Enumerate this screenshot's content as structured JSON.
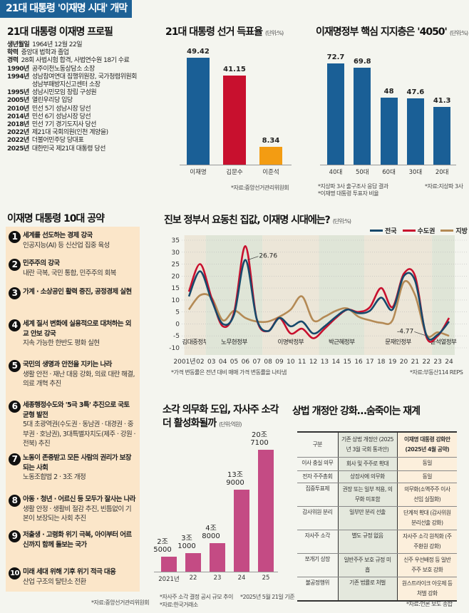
{
  "banner": "21대 대통령 '이재명 시대' 개막",
  "profile": {
    "title": "21대 대통령 이재명 프로필",
    "rows": [
      {
        "k": "생년월일",
        "v": "1964년 12월 22일"
      },
      {
        "k": "학력",
        "v": "중앙대 법학과 졸업"
      },
      {
        "k": "경력",
        "v": "28회 사법시험 합격, 사법연수원 18기 수료"
      },
      {
        "k": "1990년",
        "v": "공주이천노동상담소 소장"
      },
      {
        "k": "1994년",
        "v": "성남참여연대 집행위원장, 국가청렴위원회 성남부패방지신고센터 소장"
      },
      {
        "k": "1995년",
        "v": "성남시민모임 창립 구성원"
      },
      {
        "k": "2005년",
        "v": "열린우리당 입당"
      },
      {
        "k": "2010년",
        "v": "민선 5기 성남시장 당선"
      },
      {
        "k": "2014년",
        "v": "민선 6기 성남시장 당선"
      },
      {
        "k": "2018년",
        "v": "민선 7기 경기도지사 당선"
      },
      {
        "k": "2022년",
        "v": "제21대 국회의원(인천 계양을)"
      },
      {
        "k": "2022년",
        "v": "더불어민주당 당대표"
      },
      {
        "k": "2025년",
        "v": "대한민국 제21대 대통령 당선"
      }
    ]
  },
  "pledges": {
    "title": "이재명 대통령 10대 공약",
    "source": "*자료:중앙선거관리위원회",
    "items": [
      {
        "n": "1",
        "t": "세계를 선도하는 경제 강국",
        "s": "인공지능(AI) 등 신산업 집중 육성"
      },
      {
        "n": "2",
        "t": "민주주의 강국",
        "s": "내란 극복, 국민 통합, 민주주의 회복"
      },
      {
        "n": "3",
        "t": "가계 · 소상공인 활력 증진, 공정경제 실현",
        "s": ""
      },
      {
        "n": "4",
        "t": "세계 질서 변화에 실용적으로 대처하는 외교 안보 강국",
        "s": "지속 가능한 한반도 평화 실현"
      },
      {
        "n": "5",
        "t": "국민의 생명과 안전을 지키는 나라",
        "s": "생활 안전 · 재난 대응 강화, 의료 대란 해결, 의료 개혁 추진"
      },
      {
        "n": "6",
        "t": "세종행정수도와 '5극 3특' 추진으로 국토 균형 발전",
        "s": "5대 초광역권(수도권 · 동남권 · 대경권 · 중부권 · 호남권), 3대특별자치도(제주 · 강원 · 전북) 추진"
      },
      {
        "n": "7",
        "t": "노동이 존중받고 모든 사람의 권리가 보장되는 사회",
        "s": "노동조합법 2 · 3조 개정"
      },
      {
        "n": "8",
        "t": "아동 · 청년 · 어르신 등 모두가 잘사는 나라",
        "s": "생활 안정 · 생활비 절감 추진, 빈틈없이 기본이 보장되는 사회 추진"
      },
      {
        "n": "9",
        "t": "저출생 · 고령화 위기 극복, 아이부터 어르신까지 함께 돌보는 국가",
        "s": ""
      },
      {
        "n": "10",
        "t": "미래 세대 위해 기후 위기 적극 대응",
        "s": "산업 구조의 탈탄소 전환"
      }
    ]
  },
  "chart_data": [
    {
      "id": "vote",
      "type": "bar",
      "title": "21대 대통령 선거 득표율",
      "unit": "(단위:%)",
      "categories": [
        "이재명",
        "김문수",
        "이준석"
      ],
      "values": [
        49.42,
        41.15,
        8.34
      ],
      "value_labels": [
        "49.42",
        "41.15",
        "8.34"
      ],
      "colors": [
        "#1a5f96",
        "#c8102e",
        "#f39c12"
      ],
      "source": "*자료:중앙선거관리위원회"
    },
    {
      "id": "age",
      "type": "bar",
      "title": "이재명정부 핵심 지지층은 '4050'",
      "unit": "(단위:%)",
      "categories": [
        "40대",
        "50대",
        "60대",
        "30대",
        "20대"
      ],
      "values": [
        72.7,
        69.8,
        48,
        47.6,
        41.3
      ],
      "value_labels": [
        "72.7",
        "69.8",
        "48",
        "47.6",
        "41.3"
      ],
      "colors": [
        "#1a5f96"
      ],
      "notes": [
        "*지상파 3사 출구조사 응답 결과",
        "*이재명 대통령 투표자 비율"
      ],
      "source": "*자료:지상파 3사"
    },
    {
      "id": "housing",
      "type": "line",
      "title": "진보 정부서 요동친 집값, 이재명 시대에는?",
      "unit": "(단위:%)",
      "x": [
        2001,
        2002,
        2003,
        2004,
        2005,
        2006,
        2007,
        2008,
        2009,
        2010,
        2011,
        2012,
        2013,
        2014,
        2015,
        2016,
        2017,
        2018,
        2019,
        2020,
        2021,
        2022,
        2023,
        2024
      ],
      "x_tick_labels": [
        "2001년",
        "02",
        "03",
        "04",
        "05",
        "06",
        "07",
        "08",
        "09",
        "10",
        "11",
        "12",
        "13",
        "14",
        "15",
        "16",
        "17",
        "18",
        "19",
        "20",
        "21",
        "22",
        "23",
        "24"
      ],
      "ylim": [
        -10,
        35
      ],
      "y_ticks": [
        -10,
        -5,
        0,
        5,
        10,
        15,
        20,
        25,
        30,
        35
      ],
      "grid": true,
      "legend": "top-right",
      "series": [
        {
          "name": "전국",
          "color": "#17496b",
          "values": [
            11.5,
            22,
            10,
            0,
            4,
            26.76,
            2,
            -3,
            2.5,
            -1,
            1,
            -4,
            -1,
            3,
            6,
            4.5,
            5.5,
            11,
            6,
            20,
            18,
            -4.77,
            -4.5,
            1
          ]
        },
        {
          "name": "수도권",
          "color": "#c8102e",
          "values": [
            13.5,
            25,
            11,
            -1,
            5,
            32.5,
            2,
            -3,
            2.5,
            -4,
            -2,
            -6,
            -2,
            2.5,
            6,
            5,
            7,
            15,
            7,
            21,
            20,
            -5.5,
            -5,
            2.5
          ]
        },
        {
          "name": "지방",
          "color": "#b48a55",
          "values": [
            6,
            12,
            11,
            1.5,
            5.5,
            2.5,
            1,
            1,
            3,
            6,
            11.5,
            1.5,
            3,
            5.5,
            6.5,
            3,
            1.5,
            0.5,
            1.5,
            17.5,
            12,
            -4.5,
            -3.5,
            -5
          ]
        }
      ],
      "annotations": [
        {
          "text": "26.76",
          "x": 2006,
          "y": 26.76
        },
        {
          "text": "-4.77",
          "x": 2022,
          "y": -4.77
        }
      ],
      "periods": [
        {
          "name": "김대중정부",
          "from": 2000.6,
          "to": 2002.5
        },
        {
          "name": "노무현정부",
          "from": 2002.5,
          "to": 2007.5
        },
        {
          "name": "이명박정부",
          "from": 2007.5,
          "to": 2012.5
        },
        {
          "name": "박근혜정부",
          "from": 2012.5,
          "to": 2016.5
        },
        {
          "name": "문재인정부",
          "from": 2016.5,
          "to": 2022.5
        },
        {
          "name": "윤석열정부",
          "from": 2022.5,
          "to": 2024.5
        }
      ],
      "note": "*가격 변동률은 전년 대비 매매 가격 변동률을 나타냄",
      "source": "*자료:부동산114 REPS"
    },
    {
      "id": "buyback",
      "type": "bar",
      "title": "소각 의무화 도입, 자사주 소각 더 활성화될까",
      "unit": "(단위:억원)",
      "categories": [
        "2021년",
        "22",
        "23",
        "24",
        "25"
      ],
      "values": [
        25000,
        31000,
        48000,
        139000,
        207100
      ],
      "value_labels": [
        "2조 5000",
        "3조 1000",
        "4조 8000",
        "13조 9000",
        "20조 7100"
      ],
      "colors": [
        "#c44b84"
      ],
      "notes": [
        "*자사주 소각 결정 공시 규모 추이",
        "*자료:한국거래소",
        "*2025년 5월 21일 기준"
      ]
    }
  ],
  "table": {
    "title": "상법 개정안 강화…숨죽이는 재계",
    "headers": [
      "구분",
      "기존 상법 개정안 (2025년 3월 국회 통과안)",
      "이재명 대통령 강화안 (2025년 4월 공약)"
    ],
    "rows": [
      [
        "이사 충실 의무",
        "회사 및 주주로 확대",
        "동일"
      ],
      [
        "전자 주주총회",
        "상장사에 의무화",
        "동일"
      ],
      [
        "집중투표제",
        "권장 또는 일부 적용, 의무화 미포함",
        "의무화(소액주주 이사 선임 실질화)"
      ],
      [
        "감사위원 분리",
        "일부만 분리 선출",
        "단계적 확대 (감사위원 분리선출 강화)"
      ],
      [
        "자사주 소각",
        "별도 규정 없음",
        "자사주 소각 원칙화 (주주환원 강화)"
      ],
      [
        "쪼개기 상장",
        "일반주주 보호 규정 미흡",
        "신주 우선배정 등 일반주주 보호 강화"
      ],
      [
        "불공정행위",
        "기존 법률로 처벌",
        "원스트라이크 아웃제 등 처벌 강화"
      ]
    ],
    "source": "*자료:언론 보도 종합"
  }
}
